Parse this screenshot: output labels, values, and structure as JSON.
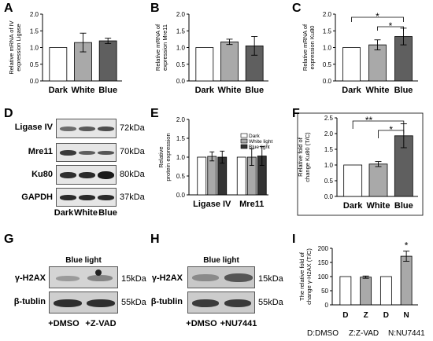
{
  "letters": {
    "A": "A",
    "B": "B",
    "C": "C",
    "D": "D",
    "E": "E",
    "F": "F",
    "G": "G",
    "H": "H",
    "I": "I"
  },
  "chart_data": [
    {
      "id": "A",
      "type": "bar",
      "categories": [
        "Dark",
        "White",
        "Blue"
      ],
      "values": [
        1.0,
        1.15,
        1.2
      ],
      "errors": [
        0,
        0.28,
        0.08
      ],
      "ylabel": "Relative mRNA expression of Ligase IV",
      "ylim": [
        0,
        2.0
      ],
      "yticks": [
        "0.0",
        "0.5",
        "1.0",
        "1.5",
        "2.0"
      ],
      "colors": [
        "#ffffff",
        "#a9a9a9",
        "#5f5f5f"
      ]
    },
    {
      "id": "B",
      "type": "bar",
      "categories": [
        "Dark",
        "White",
        "Blue"
      ],
      "values": [
        1.0,
        1.17,
        1.05
      ],
      "errors": [
        0,
        0.08,
        0.28
      ],
      "ylabel": "Relative mRNA expression of Mre11",
      "ylim": [
        0,
        2.0
      ],
      "yticks": [
        "0.0",
        "0.5",
        "1.0",
        "1.5",
        "2.0"
      ],
      "colors": [
        "#ffffff",
        "#a9a9a9",
        "#5f5f5f"
      ]
    },
    {
      "id": "C",
      "type": "bar",
      "categories": [
        "Dark",
        "White",
        "Blue"
      ],
      "values": [
        1.0,
        1.08,
        1.33
      ],
      "errors": [
        0,
        0.15,
        0.25
      ],
      "ylabel": "Relative mRNA expression of Ku80",
      "ylim": [
        0,
        2.0
      ],
      "yticks": [
        "0.0",
        "0.5",
        "1.0",
        "1.5",
        "2.0"
      ],
      "colors": [
        "#ffffff",
        "#a9a9a9",
        "#5f5f5f"
      ],
      "annotations": [
        "*",
        "*"
      ]
    },
    {
      "id": "E",
      "type": "bar",
      "categories": [
        "Ligase IV",
        "Mre11"
      ],
      "series": [
        {
          "name": "Dark",
          "values": [
            1.0,
            1.0
          ],
          "errors": [
            0.0,
            0.0
          ],
          "color": "#ffffff"
        },
        {
          "name": "White light",
          "values": [
            1.02,
            1.0
          ],
          "errors": [
            0.12,
            0.22
          ],
          "color": "#a9a9a9"
        },
        {
          "name": "Blue light",
          "values": [
            1.0,
            1.03
          ],
          "errors": [
            0.16,
            0.25
          ],
          "color": "#333333"
        }
      ],
      "ylabel": "Relative protein expression",
      "ylim": [
        0,
        2.0
      ],
      "yticks": [
        "0.0",
        "0.5",
        "1.0",
        "1.5",
        "2.0"
      ],
      "legend": "top-right"
    },
    {
      "id": "F",
      "type": "bar",
      "categories": [
        "Dark",
        "White",
        "Blue"
      ],
      "values": [
        1.0,
        1.03,
        1.93
      ],
      "errors": [
        0,
        0.08,
        0.38
      ],
      "ylabel": "Relative fold change of Ku80 (T/C)",
      "ylim": [
        0,
        2.5
      ],
      "yticks": [
        "0.0",
        "0.5",
        "1.0",
        "1.5",
        "2.0",
        "2.5"
      ],
      "colors": [
        "#ffffff",
        "#a9a9a9",
        "#5f5f5f"
      ],
      "annotations": [
        "**",
        "*"
      ]
    },
    {
      "id": "I",
      "type": "bar",
      "categories": [
        "D",
        "Z",
        "D",
        "N"
      ],
      "values": [
        100,
        98,
        100,
        172
      ],
      "errors": [
        0,
        4,
        0,
        18
      ],
      "ylabel": "The relative fold change of γ-H2AX (T/C)",
      "ylim": [
        0,
        200
      ],
      "yticks": [
        "0",
        "50",
        "100",
        "150",
        "200"
      ],
      "colors": [
        "#ffffff",
        "#a9a9a9",
        "#ffffff",
        "#a9a9a9"
      ],
      "annotations": [
        "*"
      ]
    }
  ],
  "blot_d": {
    "rows": [
      {
        "label": "Ligase IV",
        "kda": "72kDa"
      },
      {
        "label": "Mre11",
        "kda": "70kDa"
      },
      {
        "label": "Ku80",
        "kda": "80kDa"
      },
      {
        "label": "GAPDH",
        "kda": "37kDa"
      }
    ],
    "lanes": [
      "Dark",
      "White",
      "Blue"
    ]
  },
  "blot_g": {
    "title": "Blue light",
    "rows": [
      {
        "label": "γ-H2AX",
        "kda": "15kDa"
      },
      {
        "label": "β-tublin",
        "kda": "55kDa"
      }
    ],
    "lanes": [
      "+DMSO",
      "+Z-VAD"
    ]
  },
  "blot_h": {
    "title": "Blue light",
    "rows": [
      {
        "label": "γ-H2AX",
        "kda": "15kDa"
      },
      {
        "label": "β-tublin",
        "kda": "55kDa"
      }
    ],
    "lanes": [
      "+DMSO",
      "+NU7441"
    ]
  },
  "footnote_i": [
    "D:DMSO",
    "Z:Z-VAD",
    "N:NU7441"
  ]
}
